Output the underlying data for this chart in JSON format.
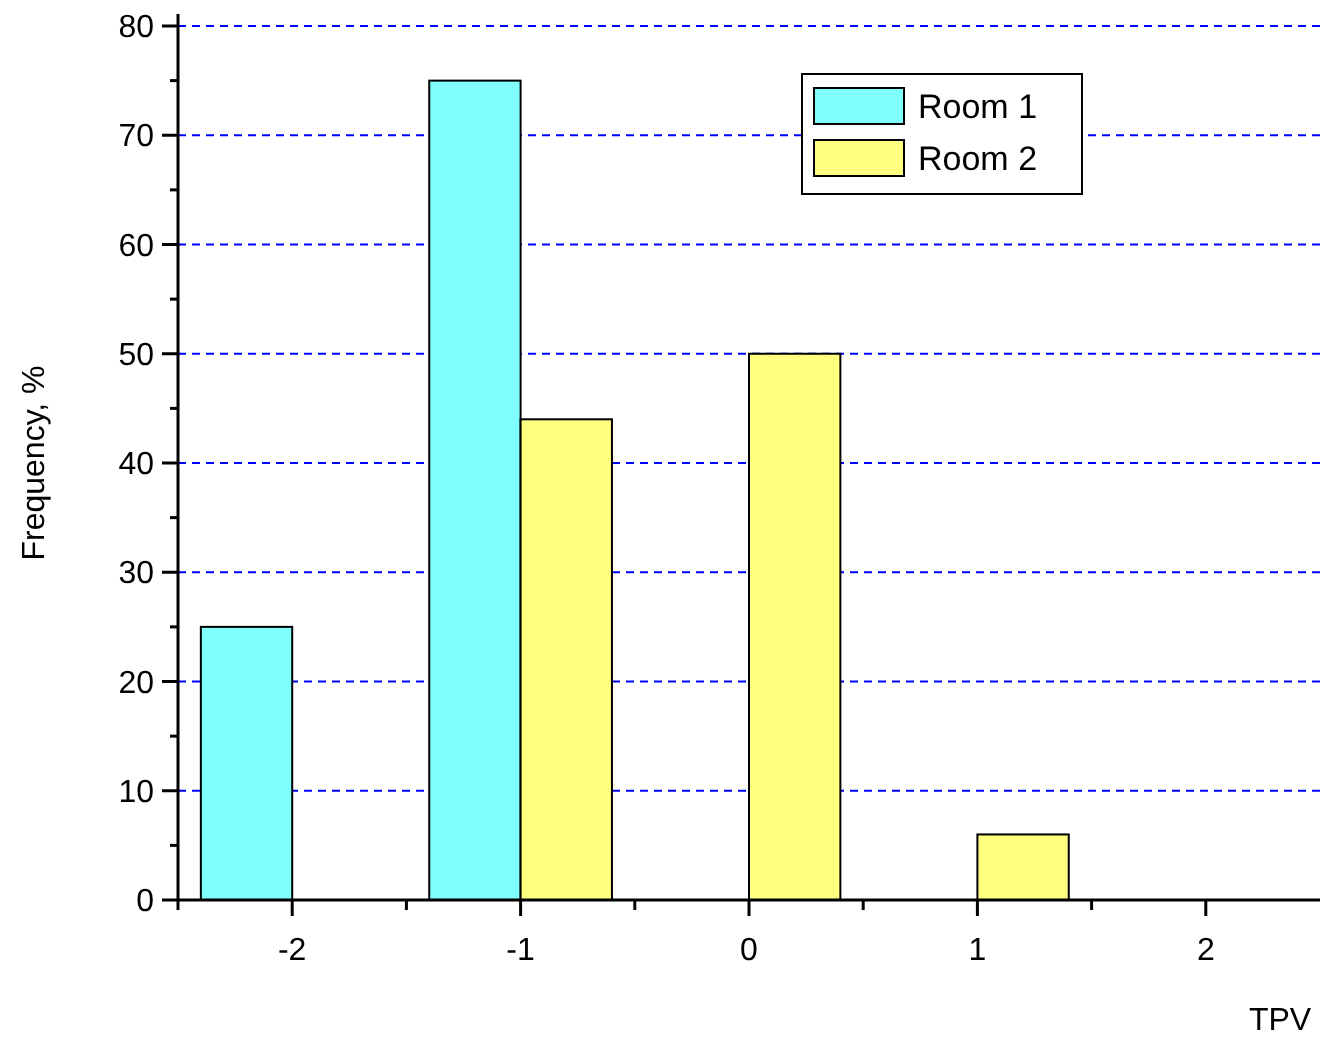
{
  "chart_data": {
    "type": "bar",
    "xlabel": "TPV",
    "ylabel": "Frequency, %",
    "categories": [
      "-2",
      "-1",
      "0",
      "1",
      "2"
    ],
    "series": [
      {
        "name": "Room 1",
        "color": "#80ffff",
        "values": [
          25,
          75,
          0,
          0,
          0
        ]
      },
      {
        "name": "Room 2",
        "color": "#ffff80",
        "values": [
          0,
          44,
          50,
          6,
          0
        ]
      }
    ],
    "ylim": [
      0,
      80
    ],
    "yticks": [
      0,
      {
        "value": 5,
        "label": null
      },
      10,
      {
        "value": 15,
        "label": null
      },
      20,
      {
        "value": 25,
        "label": null
      },
      30,
      {
        "value": 35,
        "label": null
      },
      40,
      {
        "value": 45,
        "label": null
      },
      50,
      {
        "value": 55,
        "label": null
      },
      60,
      {
        "value": 65,
        "label": null
      },
      70,
      {
        "value": 75,
        "label": null
      },
      80
    ],
    "grid": "y",
    "legend": "top right"
  }
}
